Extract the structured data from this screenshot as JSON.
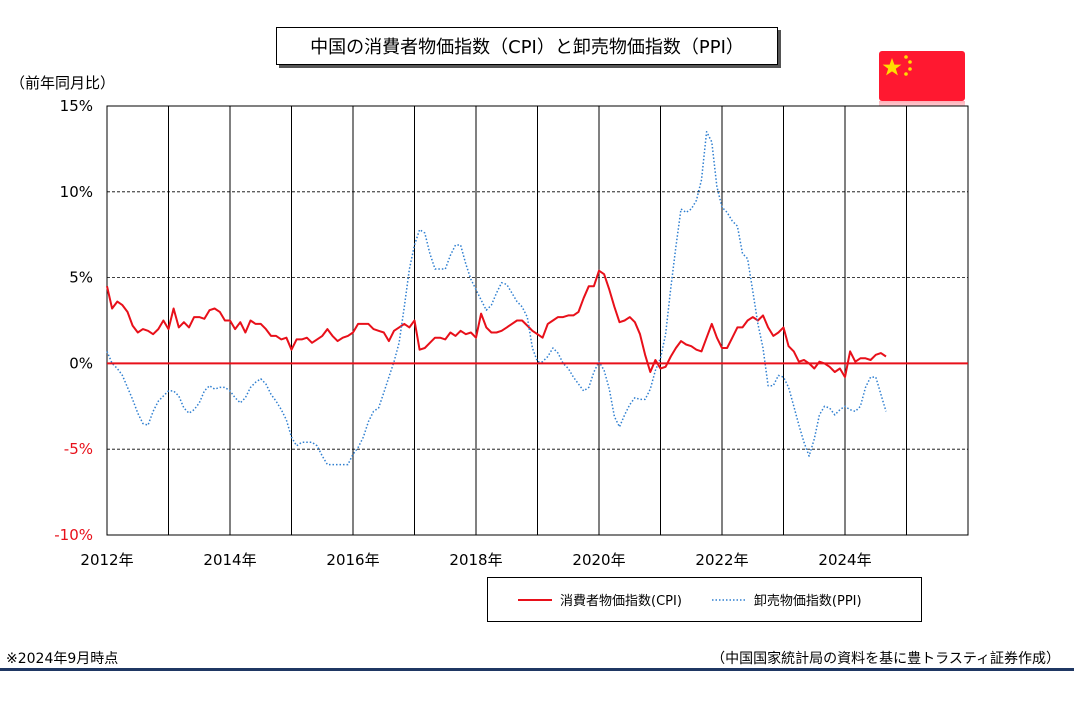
{
  "title": "中国の消費者物価指数（CPI）と卸売物価指数（PPI）",
  "y_axis_note": "（前年同月比）",
  "footnote": "※2024年9月時点",
  "source": "（中国国家統計局の資料を基に豊トラスティ証券作成）",
  "flag_icon": "china-flag-icon",
  "colors": {
    "cpi": "#e8101a",
    "ppi": "#2f7fd0",
    "zero_line": "#e8101a",
    "negative_tick": "#e8101a",
    "rule": "#1f3763"
  },
  "chart_data": {
    "type": "line",
    "ylim": [
      -10,
      15
    ],
    "yticks": [
      {
        "value": 15,
        "label": "15%"
      },
      {
        "value": 10,
        "label": "10%"
      },
      {
        "value": 5,
        "label": "5%"
      },
      {
        "value": 0,
        "label": "0%"
      },
      {
        "value": -5,
        "label": "-5%"
      },
      {
        "value": -10,
        "label": "-10%"
      }
    ],
    "xlim": [
      "2012-01",
      "2026-01"
    ],
    "xticks": [
      {
        "value": "2012-01",
        "label": "2012年"
      },
      {
        "value": "2014-01",
        "label": "2014年"
      },
      {
        "value": "2016-01",
        "label": "2016年"
      },
      {
        "value": "2018-01",
        "label": "2018年"
      },
      {
        "value": "2020-01",
        "label": "2020年"
      },
      {
        "value": "2022-01",
        "label": "2022年"
      },
      {
        "value": "2024-01",
        "label": "2024年"
      }
    ],
    "grid": true,
    "legend_position": "bottom-right",
    "series": [
      {
        "name": "消費者物価指数(CPI)",
        "style": "solid",
        "start": "2012-01",
        "values": [
          4.5,
          3.2,
          3.6,
          3.4,
          3.0,
          2.2,
          1.8,
          2.0,
          1.9,
          1.7,
          2.0,
          2.5,
          2.0,
          3.2,
          2.1,
          2.4,
          2.1,
          2.7,
          2.7,
          2.6,
          3.1,
          3.2,
          3.0,
          2.5,
          2.5,
          2.0,
          2.4,
          1.8,
          2.5,
          2.3,
          2.3,
          2.0,
          1.6,
          1.6,
          1.4,
          1.5,
          0.8,
          1.4,
          1.4,
          1.5,
          1.2,
          1.4,
          1.6,
          2.0,
          1.6,
          1.3,
          1.5,
          1.6,
          1.8,
          2.3,
          2.3,
          2.3,
          2.0,
          1.9,
          1.8,
          1.3,
          1.9,
          2.1,
          2.3,
          2.1,
          2.5,
          0.8,
          0.9,
          1.2,
          1.5,
          1.5,
          1.4,
          1.8,
          1.6,
          1.9,
          1.7,
          1.8,
          1.5,
          2.9,
          2.1,
          1.8,
          1.8,
          1.9,
          2.1,
          2.3,
          2.5,
          2.5,
          2.2,
          1.9,
          1.7,
          1.5,
          2.3,
          2.5,
          2.7,
          2.7,
          2.8,
          2.8,
          3.0,
          3.8,
          4.5,
          4.5,
          5.4,
          5.2,
          4.3,
          3.3,
          2.4,
          2.5,
          2.7,
          2.4,
          1.7,
          0.5,
          -0.5,
          0.2,
          -0.3,
          -0.2,
          0.4,
          0.9,
          1.3,
          1.1,
          1.0,
          0.8,
          0.7,
          1.5,
          2.3,
          1.5,
          0.9,
          0.9,
          1.5,
          2.1,
          2.1,
          2.5,
          2.7,
          2.5,
          2.8,
          2.1,
          1.6,
          1.8,
          2.1,
          1.0,
          0.7,
          0.1,
          0.2,
          0.0,
          -0.3,
          0.1,
          0.0,
          -0.2,
          -0.5,
          -0.3,
          -0.8,
          0.7,
          0.1,
          0.3,
          0.3,
          0.2,
          0.5,
          0.6,
          0.4
        ]
      },
      {
        "name": "卸売物価指数(PPI)",
        "style": "dotted",
        "start": "2012-01",
        "values": [
          0.7,
          0.0,
          -0.3,
          -0.7,
          -1.4,
          -2.1,
          -2.9,
          -3.5,
          -3.6,
          -2.8,
          -2.2,
          -1.9,
          -1.6,
          -1.6,
          -1.9,
          -2.6,
          -2.9,
          -2.7,
          -2.3,
          -1.6,
          -1.3,
          -1.5,
          -1.4,
          -1.4,
          -1.6,
          -2.0,
          -2.3,
          -2.0,
          -1.4,
          -1.1,
          -0.9,
          -1.2,
          -1.8,
          -2.2,
          -2.7,
          -3.3,
          -4.3,
          -4.8,
          -4.6,
          -4.6,
          -4.6,
          -4.8,
          -5.4,
          -5.9,
          -5.9,
          -5.9,
          -5.9,
          -5.9,
          -5.3,
          -4.9,
          -4.3,
          -3.4,
          -2.8,
          -2.6,
          -1.7,
          -0.8,
          0.1,
          1.2,
          3.3,
          5.5,
          6.9,
          7.8,
          7.6,
          6.4,
          5.5,
          5.5,
          5.5,
          6.3,
          6.9,
          6.9,
          5.8,
          4.9,
          4.3,
          3.7,
          3.1,
          3.4,
          4.1,
          4.7,
          4.6,
          4.1,
          3.6,
          3.3,
          2.7,
          0.9,
          0.1,
          0.1,
          0.4,
          0.9,
          0.6,
          0.0,
          -0.3,
          -0.8,
          -1.2,
          -1.6,
          -1.4,
          -0.5,
          0.1,
          -0.4,
          -1.5,
          -3.1,
          -3.7,
          -3.0,
          -2.4,
          -2.0,
          -2.1,
          -2.1,
          -1.5,
          -0.4,
          0.3,
          1.7,
          4.4,
          6.8,
          9.0,
          8.8,
          9.0,
          9.5,
          10.7,
          13.5,
          12.9,
          10.3,
          9.1,
          8.8,
          8.3,
          8.0,
          6.4,
          6.1,
          4.2,
          2.3,
          0.9,
          -1.3,
          -1.3,
          -0.7,
          -0.8,
          -1.4,
          -2.5,
          -3.6,
          -4.6,
          -5.4,
          -4.4,
          -3.0,
          -2.5,
          -2.6,
          -3.0,
          -2.7,
          -2.5,
          -2.7,
          -2.8,
          -2.5,
          -1.4,
          -0.8,
          -0.8,
          -1.8,
          -2.8
        ]
      }
    ]
  }
}
